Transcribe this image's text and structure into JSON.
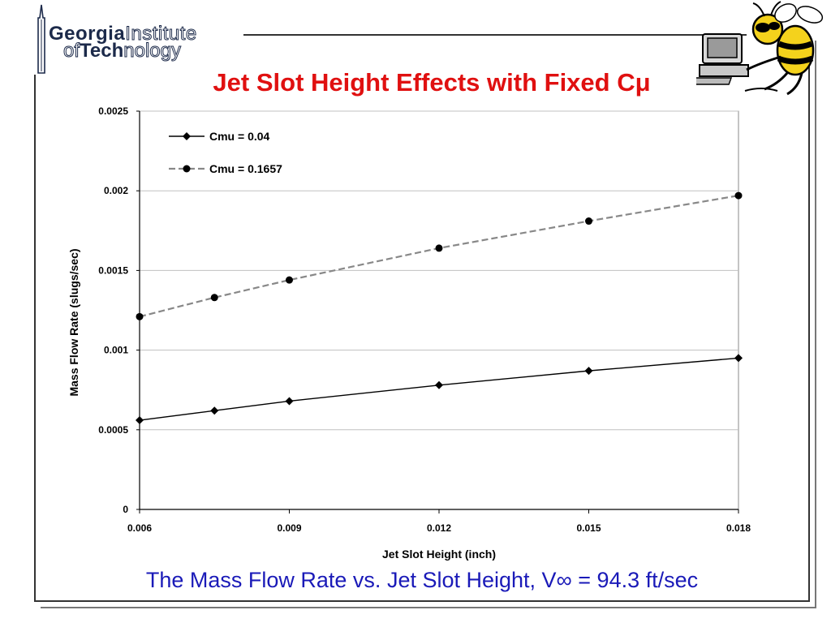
{
  "logo": {
    "line1_bold": "Georgia",
    "line1_light": "Institute",
    "line2_light1": "of",
    "line2_bold": "Tech",
    "line2_light2": "nology"
  },
  "slide": {
    "title": "Jet Slot Height Effects with Fixed Cμ",
    "subtitle": "The Mass Flow Rate vs. Jet Slot Height, V∞ = 94.3 ft/sec"
  },
  "mascot": {
    "icon": "yellow-jacket-computer-icon"
  },
  "colors": {
    "title": "#e01010",
    "subtitle": "#1a1ab8",
    "series1": "#000000",
    "series2_line": "#888888",
    "series2_marker": "#000000"
  },
  "chart_data": {
    "type": "line",
    "xlabel": "Jet Slot Height (inch)",
    "ylabel": "Mass Flow Rate (slugs/sec)",
    "xlim": [
      0.006,
      0.018
    ],
    "ylim": [
      0,
      0.0025
    ],
    "x_ticks": [
      "0.006",
      "0.009",
      "0.012",
      "0.015",
      "0.018"
    ],
    "y_ticks": [
      "0",
      "0.0005",
      "0.001",
      "0.0015",
      "0.002",
      "0.0025"
    ],
    "grid": true,
    "legend_position": "top-left",
    "series": [
      {
        "name": "Cmu = 0.04",
        "marker": "diamond",
        "x": [
          0.006,
          0.0075,
          0.009,
          0.012,
          0.015,
          0.018
        ],
        "y": [
          0.00056,
          0.00062,
          0.00068,
          0.00078,
          0.00087,
          0.00095
        ]
      },
      {
        "name": "Cmu = 0.1657",
        "marker": "circle",
        "x": [
          0.006,
          0.0075,
          0.009,
          0.012,
          0.015,
          0.018
        ],
        "y": [
          0.00121,
          0.00133,
          0.00144,
          0.00164,
          0.00181,
          0.00197
        ]
      }
    ]
  }
}
